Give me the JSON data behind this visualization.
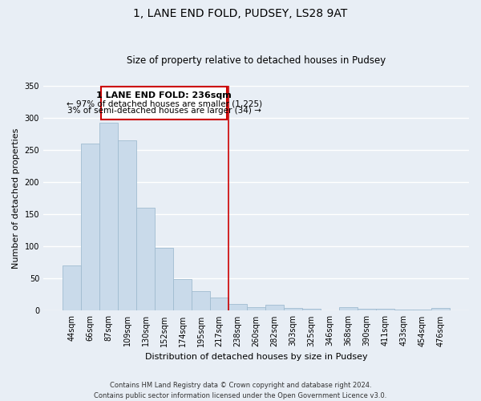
{
  "title": "1, LANE END FOLD, PUDSEY, LS28 9AT",
  "subtitle": "Size of property relative to detached houses in Pudsey",
  "xlabel": "Distribution of detached houses by size in Pudsey",
  "ylabel": "Number of detached properties",
  "bar_color": "#c9daea",
  "bar_edgecolor": "#a0bcd0",
  "background_color": "#e8eef5",
  "grid_color": "#ffffff",
  "categories": [
    "44sqm",
    "66sqm",
    "87sqm",
    "109sqm",
    "130sqm",
    "152sqm",
    "174sqm",
    "195sqm",
    "217sqm",
    "238sqm",
    "260sqm",
    "282sqm",
    "303sqm",
    "325sqm",
    "346sqm",
    "368sqm",
    "390sqm",
    "411sqm",
    "433sqm",
    "454sqm",
    "476sqm"
  ],
  "values": [
    70,
    260,
    292,
    265,
    160,
    98,
    49,
    30,
    20,
    10,
    6,
    9,
    4,
    3,
    0,
    5,
    3,
    3,
    2,
    2,
    4
  ],
  "ylim": [
    0,
    350
  ],
  "yticks": [
    0,
    50,
    100,
    150,
    200,
    250,
    300,
    350
  ],
  "vline_x": 8.5,
  "vline_color": "#cc0000",
  "annotation_title": "1 LANE END FOLD: 236sqm",
  "annotation_line1": "← 97% of detached houses are smaller (1,225)",
  "annotation_line2": "3% of semi-detached houses are larger (34) →",
  "annotation_box_facecolor": "#ffffff",
  "annotation_box_edgecolor": "#cc0000",
  "title_fontsize": 10,
  "subtitle_fontsize": 8.5,
  "ylabel_fontsize": 8,
  "xlabel_fontsize": 8,
  "tick_fontsize": 7,
  "footer_line1": "Contains HM Land Registry data © Crown copyright and database right 2024.",
  "footer_line2": "Contains public sector information licensed under the Open Government Licence v3.0."
}
